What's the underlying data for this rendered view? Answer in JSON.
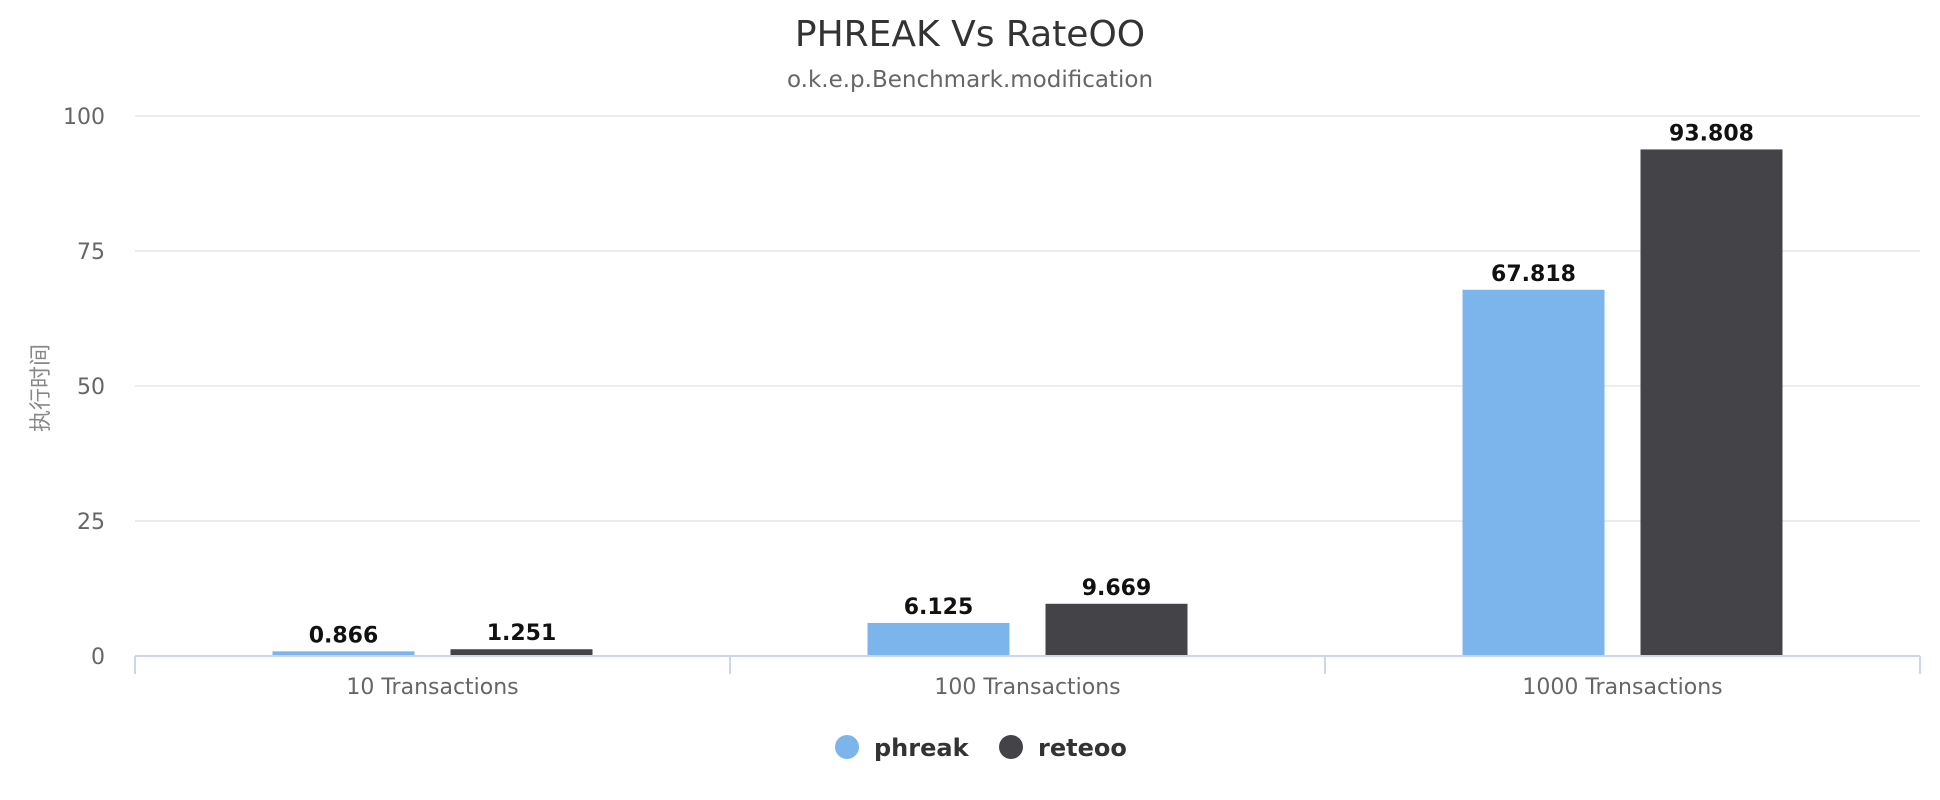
{
  "chart_data": {
    "type": "bar",
    "title": "PHREAK Vs RateOO",
    "subtitle": "o.k.e.p.Benchmark.modification",
    "ylabel": "执行时间",
    "xlabel": "",
    "categories": [
      "10 Transactions",
      "100 Transactions",
      "1000 Transactions"
    ],
    "series": [
      {
        "name": "phreak",
        "color": "#7cb5ec",
        "values": [
          0.866,
          6.125,
          67.818
        ]
      },
      {
        "name": "reteoo",
        "color": "#434348",
        "values": [
          1.251,
          9.669,
          93.808
        ]
      }
    ],
    "ylim": [
      0,
      100
    ],
    "yticks": [
      0,
      25,
      50,
      75,
      100
    ],
    "grid": true,
    "legend_position": "bottom-center"
  }
}
